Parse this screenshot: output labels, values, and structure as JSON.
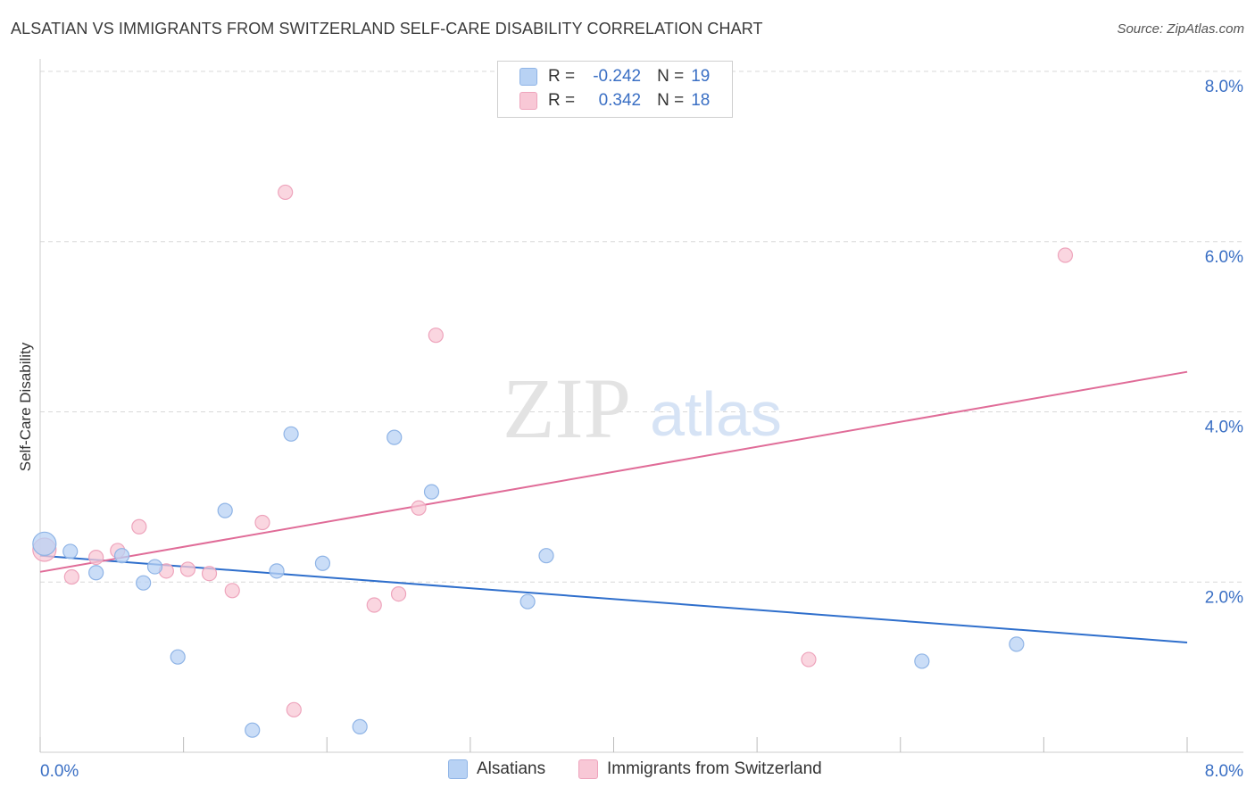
{
  "header": {
    "title": "ALSATIAN VS IMMIGRANTS FROM SWITZERLAND SELF-CARE DISABILITY CORRELATION CHART",
    "source": "Source: ZipAtlas.com"
  },
  "watermark": {
    "zip": "ZIP",
    "atlas": "atlas"
  },
  "legend": {
    "rows": [
      {
        "r_label": "R =",
        "r_value": "-0.242",
        "n_label": "N =",
        "n_value": "19"
      },
      {
        "r_label": "R =",
        "r_value": "0.342",
        "n_label": "N =",
        "n_value": "18"
      }
    ]
  },
  "bottom_legend": {
    "series1": "Alsatians",
    "series2": "Immigrants from Switzerland"
  },
  "colors": {
    "blue_fill": "#b8d2f4",
    "blue_stroke": "#8fb4e6",
    "blue_line": "#2f6fcc",
    "pink_fill": "#f8c8d6",
    "pink_stroke": "#eea4bc",
    "pink_line": "#e06c98",
    "tick_label": "#3a6fc4",
    "grid": "#d8d8d8"
  },
  "chart_data": {
    "type": "scatter",
    "title": "ALSATIAN VS IMMIGRANTS FROM SWITZERLAND SELF-CARE DISABILITY CORRELATION CHART",
    "xlabel": "",
    "ylabel": "Self-Care Disability",
    "xlim": [
      0,
      8
    ],
    "ylim": [
      0,
      8
    ],
    "x_tick_labels": [
      "0.0%",
      "8.0%"
    ],
    "y_tick_labels": [
      "2.0%",
      "4.0%",
      "6.0%",
      "8.0%"
    ],
    "y_ticks": [
      2,
      4,
      6,
      8
    ],
    "grid": true,
    "legend_position": "top-center",
    "series": [
      {
        "name": "Alsatians",
        "r": -0.242,
        "n": 19,
        "points": [
          [
            0.03,
            2.45
          ],
          [
            0.21,
            2.36
          ],
          [
            0.39,
            2.11
          ],
          [
            0.57,
            2.31
          ],
          [
            0.72,
            1.99
          ],
          [
            0.8,
            2.18
          ],
          [
            0.96,
            1.12
          ],
          [
            1.29,
            2.84
          ],
          [
            1.48,
            0.26
          ],
          [
            1.65,
            2.13
          ],
          [
            1.75,
            3.74
          ],
          [
            1.97,
            2.22
          ],
          [
            2.23,
            0.3
          ],
          [
            2.47,
            3.7
          ],
          [
            2.73,
            3.06
          ],
          [
            3.4,
            1.77
          ],
          [
            3.53,
            2.31
          ],
          [
            6.15,
            1.07
          ],
          [
            6.81,
            1.27
          ]
        ],
        "trend": {
          "x": [
            0,
            8
          ],
          "y": [
            2.31,
            1.29
          ]
        }
      },
      {
        "name": "Immigrants from Switzerland",
        "r": 0.342,
        "n": 18,
        "points": [
          [
            0.03,
            2.38
          ],
          [
            0.22,
            2.06
          ],
          [
            0.39,
            2.29
          ],
          [
            0.54,
            2.37
          ],
          [
            0.69,
            2.65
          ],
          [
            0.88,
            2.13
          ],
          [
            1.03,
            2.15
          ],
          [
            1.18,
            2.1
          ],
          [
            1.34,
            1.9
          ],
          [
            1.55,
            2.7
          ],
          [
            1.71,
            6.58
          ],
          [
            1.77,
            0.5
          ],
          [
            2.33,
            1.73
          ],
          [
            2.5,
            1.86
          ],
          [
            2.64,
            2.87
          ],
          [
            2.76,
            4.9
          ],
          [
            5.36,
            1.09
          ],
          [
            7.15,
            5.84
          ]
        ],
        "trend": {
          "x": [
            0,
            8
          ],
          "y": [
            2.12,
            4.47
          ]
        }
      }
    ]
  }
}
